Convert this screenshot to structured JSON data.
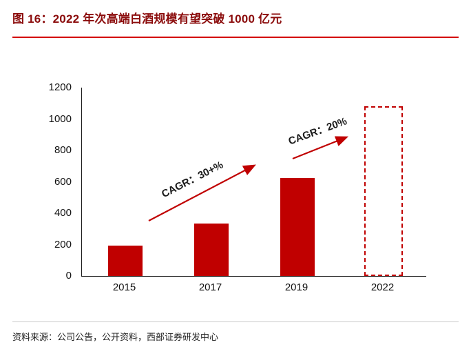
{
  "page": {
    "title": "图 16：2022 年次高端白酒规模有望突破 1000 亿元",
    "source": "资料来源：公司公告，公开资料，西部证券研发中心"
  },
  "colors": {
    "title_red": "#8b0c0c",
    "rule_red": "#d40000",
    "bar_red": "#c00000",
    "arrow_red": "#c00000",
    "axis_black": "#1a1a1a"
  },
  "chart_data": {
    "type": "bar",
    "title": "",
    "xlabel": "",
    "ylabel": "",
    "categories": [
      "2015",
      "2017",
      "2019",
      "2022"
    ],
    "values": [
      195,
      335,
      625,
      1080
    ],
    "bar_styles": [
      "solid",
      "solid",
      "solid",
      "dashed-outline"
    ],
    "ylim": [
      0,
      1200
    ],
    "yticks": [
      0,
      200,
      400,
      600,
      800,
      1000,
      1200
    ],
    "grid": "off",
    "legend": "none",
    "annotations": [
      {
        "text": "CAGR：30+%",
        "rotation": -27,
        "between": [
          "2015",
          "2019"
        ]
      },
      {
        "text": "CAGR：20%",
        "rotation": -20,
        "between": [
          "2019",
          "2022"
        ]
      }
    ]
  }
}
